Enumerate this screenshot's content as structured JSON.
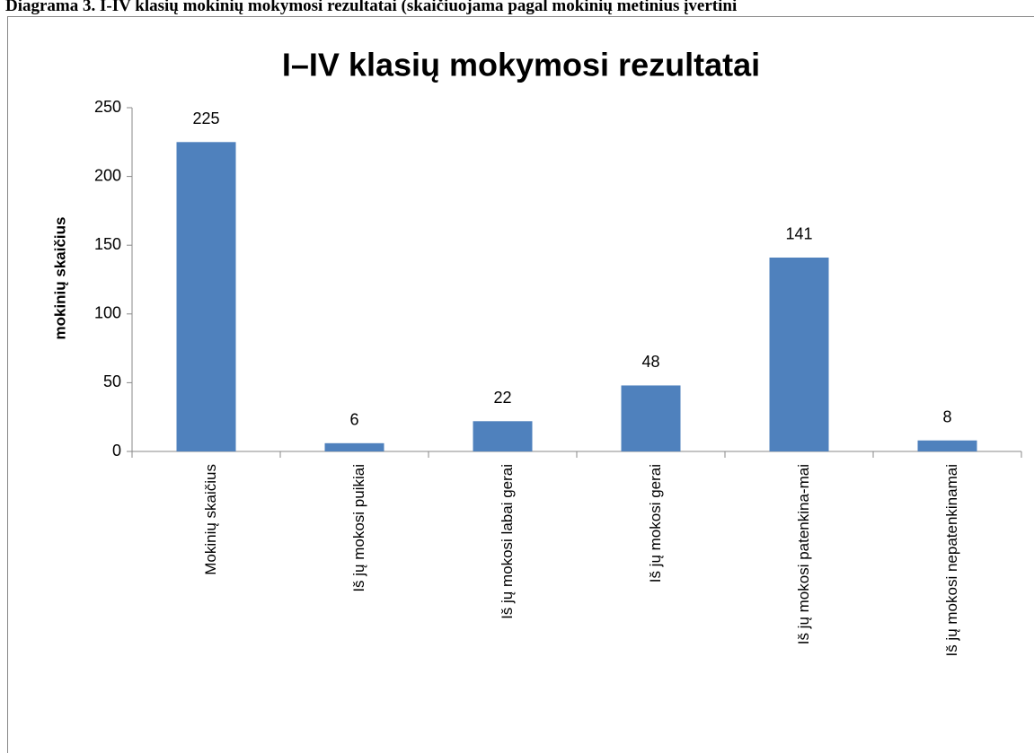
{
  "caption": "Diagrama 3. I-IV klasių mokinių mokymosi rezultatai (skaičiuojama pagal mokinių metinius įvertini",
  "chart_data": {
    "type": "bar",
    "title": "I–IV klasių mokymosi rezultatai",
    "y_label": "mokinių skaičius",
    "categories": [
      "Mokinių skaičius",
      "Iš jų mokosi puikiai",
      "Iš jų mokosi labai gerai",
      "Iš jų mokosi gerai",
      "Iš jų mokosi patenkina-mai",
      "Iš jų mokosi nepatenkinamai"
    ],
    "values": [
      225,
      6,
      22,
      48,
      141,
      8
    ],
    "color": "#4f81bd",
    "ylim": [
      0,
      250
    ],
    "yticks": [
      0,
      50,
      100,
      150,
      200,
      250
    ],
    "grid": false
  }
}
